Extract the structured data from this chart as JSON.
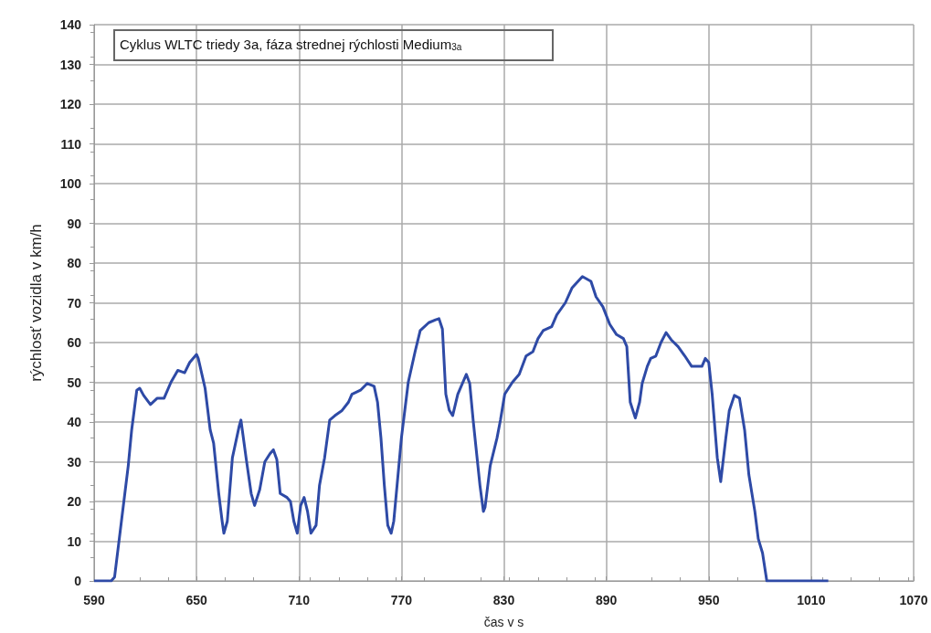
{
  "chart_data": {
    "type": "line",
    "title": "Cyklus WLTC triedy 3a, fáza strednej rýchlosti Medium$_{3a}$",
    "xlabel": "čas v s",
    "ylabel": "rýchlosť vozidla v km/h",
    "xlim": [
      590,
      1070
    ],
    "xticks": [
      590,
      650,
      710,
      770,
      830,
      890,
      950,
      1010,
      1070
    ],
    "ylim": [
      0,
      140
    ],
    "yticks": [
      0,
      10,
      20,
      30,
      40,
      50,
      60,
      70,
      80,
      90,
      100,
      110,
      120,
      130,
      140
    ],
    "grid": true,
    "marker": "none",
    "line_style": "solid",
    "series": [
      {
        "color": "#2e4aa6",
        "x": [
          590,
          600,
          602,
          606,
          610,
          612,
          615,
          616.7,
          619,
          623,
          627,
          631,
          635,
          639,
          643,
          646,
          650,
          651,
          655,
          658,
          660,
          663,
          665,
          666,
          668,
          671,
          675,
          676,
          679,
          682,
          684,
          687,
          690,
          693,
          695,
          697,
          699,
          703,
          705,
          707,
          709,
          711,
          713,
          715,
          717,
          720,
          722,
          725,
          728,
          731,
          735,
          739,
          741,
          746,
          750,
          754,
          756,
          758,
          760,
          762,
          764,
          765.5,
          770,
          774,
          778,
          781,
          786,
          790,
          792,
          794,
          796,
          798,
          800,
          803,
          808,
          810,
          812,
          816,
          818,
          819,
          822,
          826,
          828,
          830.5,
          835,
          839,
          843,
          847,
          850,
          853,
          858,
          861,
          866,
          870,
          876,
          881,
          884,
          888,
          892,
          896,
          900,
          902,
          904,
          907,
          909.5,
          911,
          914,
          916,
          919,
          922,
          925,
          928,
          932,
          936,
          940,
          946,
          948,
          950,
          952,
          955,
          957,
          960,
          962,
          965,
          968,
          971,
          973.5,
          977,
          979,
          981.5,
          984,
          1020
        ],
        "values": [
          0,
          0,
          1,
          15,
          29,
          38,
          48,
          48.5,
          46.7,
          44.4,
          46,
          46,
          50,
          53,
          52.4,
          55,
          57,
          56,
          48.5,
          38,
          34.7,
          22,
          15,
          12,
          15,
          31,
          39,
          40.5,
          31,
          22,
          19,
          23,
          30,
          32,
          33,
          30.6,
          22,
          21,
          20,
          15,
          12,
          19,
          21,
          17.5,
          12,
          14,
          24,
          31,
          40.5,
          41.6,
          42.8,
          45,
          47,
          48,
          49.7,
          49,
          45,
          36,
          24,
          14,
          12,
          15,
          36,
          50,
          57.7,
          63,
          65,
          65.7,
          66,
          63.4,
          47,
          43,
          41.6,
          47,
          52,
          49.7,
          40.5,
          24,
          17.5,
          18.6,
          29,
          36,
          40.5,
          47,
          50,
          52,
          56.6,
          57.7,
          61,
          63,
          64,
          67,
          70,
          73.8,
          76.6,
          75.4,
          71.5,
          69,
          64.6,
          62,
          61,
          59,
          45,
          41,
          45,
          49.7,
          54,
          56,
          56.6,
          60,
          62.5,
          60.7,
          59,
          56.6,
          54,
          54,
          56,
          55,
          47,
          31,
          25,
          36,
          42.8,
          46.7,
          46,
          38,
          26.7,
          17.5,
          10.6,
          7,
          0,
          0
        ]
      }
    ]
  }
}
